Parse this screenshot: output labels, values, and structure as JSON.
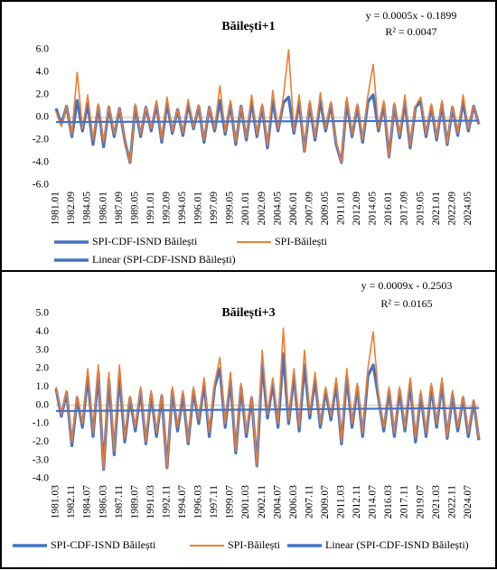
{
  "chart_data": [
    {
      "type": "line",
      "title": "Băilești+1",
      "equation": "y = 0.0005x - 0.1899",
      "r_squared": "R² = 0.0047",
      "categories": [
        "1981.01",
        null,
        null,
        "1982.09",
        null,
        null,
        "1984.05",
        null,
        null,
        "1986.01",
        null,
        null,
        "1987.09",
        null,
        null,
        "1989.05",
        null,
        null,
        "1991.01",
        null,
        null,
        "1992.09",
        null,
        null,
        "1994.05",
        null,
        null,
        "1996.01",
        null,
        null,
        "1997.09",
        null,
        null,
        "1999.05",
        null,
        null,
        "2001.01",
        null,
        null,
        "2002.09",
        null,
        null,
        "2004.05",
        null,
        null,
        "2006.01",
        null,
        null,
        "2007.09",
        null,
        null,
        "2009.05",
        null,
        null,
        "2011.01",
        null,
        null,
        "2012.09",
        null,
        null,
        "2014.05",
        null,
        null,
        "2016.01",
        null,
        null,
        "2017.09",
        null,
        null,
        "2019.05",
        null,
        null,
        "2021.01",
        null,
        null,
        "2022.09",
        null,
        null,
        "2024.05",
        null,
        null
      ],
      "series": [
        {
          "name": "SPI-CDF-ISND Băilești",
          "color": "#4472c4",
          "values": [
            0.8,
            -0.6,
            1.0,
            -1.7,
            1.5,
            -1.2,
            1.2,
            -2.4,
            1.0,
            -2.6,
            0.9,
            -1.7,
            0.8,
            -2.0,
            -4.0,
            1.0,
            -1.7,
            0.9,
            -1.2,
            1.2,
            -2.2,
            1.3,
            -1.4,
            0.7,
            -1.6,
            1.2,
            -1.0,
            1.0,
            -2.2,
            0.9,
            -1.2,
            1.5,
            -1.5,
            1.2,
            -2.4,
            1.0,
            -2.0,
            1.4,
            -1.7,
            1.0,
            -2.7,
            1.5,
            -1.2,
            1.3,
            1.8,
            -1.4,
            1.4,
            -3.0,
            1.2,
            -2.0,
            1.5,
            -1.2,
            1.2,
            -2.4,
            -4.0,
            1.4,
            -1.7,
            1.0,
            -2.2,
            1.4,
            2.0,
            -1.2,
            1.2,
            -3.5,
            1.1,
            -1.8,
            1.4,
            -2.7,
            0.9,
            1.4,
            -1.7,
            1.0,
            -2.0,
            1.2,
            -2.4,
            0.9,
            -1.6,
            1.4,
            -1.2,
            1.0,
            -0.6
          ]
        },
        {
          "name": "SPI-Băilești",
          "color": "#ed7d31",
          "values": [
            0.5,
            -0.8,
            1.0,
            -1.5,
            4.0,
            -1.0,
            2.0,
            -2.0,
            1.2,
            -2.2,
            1.0,
            -1.5,
            0.8,
            -1.8,
            -4.0,
            1.2,
            -1.5,
            0.9,
            -1.0,
            1.5,
            -2.0,
            1.8,
            -1.2,
            0.7,
            -1.4,
            1.6,
            -0.9,
            1.1,
            -2.0,
            0.9,
            -1.0,
            2.8,
            -1.3,
            1.5,
            -2.2,
            1.0,
            -1.8,
            2.0,
            -1.5,
            1.2,
            -2.5,
            2.4,
            -1.0,
            1.8,
            6.0,
            -1.2,
            2.0,
            -3.0,
            1.5,
            -1.8,
            2.2,
            -1.0,
            1.4,
            -2.2,
            -4.0,
            1.8,
            -1.5,
            1.2,
            -2.0,
            2.0,
            4.7,
            -1.0,
            1.5,
            -3.5,
            1.3,
            -1.6,
            2.0,
            -2.5,
            1.0,
            1.8,
            -1.5,
            1.2,
            -1.8,
            1.5,
            -2.3,
            1.0,
            -1.4,
            2.0,
            -1.0,
            1.0,
            -0.5
          ]
        }
      ],
      "trendline": {
        "name": "Linear (SPI-CDF-ISND Băilești)",
        "color": "#4472c4"
      },
      "ylim": [
        -6,
        6
      ],
      "yticks": [
        {
          "value": -6,
          "label": "-6.0"
        },
        {
          "value": -4,
          "label": "-4.0"
        },
        {
          "value": -2,
          "label": "-2.0"
        },
        {
          "value": 0,
          "label": "0.0"
        },
        {
          "value": 2,
          "label": "2.0"
        },
        {
          "value": 4,
          "label": "4.0"
        },
        {
          "value": 6,
          "label": "6.0"
        }
      ],
      "grid": false
    },
    {
      "type": "line",
      "title": "Băilești+3",
      "equation": "y = 0.0009x - 0.2503",
      "r_squared": "R² = 0.0165",
      "categories": [
        "1981.03",
        null,
        null,
        "1982.11",
        null,
        null,
        "1984.07",
        null,
        null,
        "1986.03",
        null,
        null,
        "1987.11",
        null,
        null,
        "1989.07",
        null,
        null,
        "1991.03",
        null,
        null,
        "1992.11",
        null,
        null,
        "1994.07",
        null,
        null,
        "1996.03",
        null,
        null,
        "1997.11",
        null,
        null,
        "1999.07",
        null,
        null,
        "2001.03",
        null,
        null,
        "2002.11",
        null,
        null,
        "2004.07",
        null,
        null,
        "2006.03",
        null,
        null,
        "2007.11",
        null,
        null,
        "2009.07",
        null,
        null,
        "2011.03",
        null,
        null,
        "2012.11",
        null,
        null,
        "2014.07",
        null,
        null,
        "2016.03",
        null,
        null,
        "2017.11",
        null,
        null,
        "2019.07",
        null,
        null,
        "2021.03",
        null,
        null,
        "2022.11",
        null,
        null,
        "2024.07",
        null,
        null
      ],
      "series": [
        {
          "name": "SPI-CDF-ISND Băilești",
          "color": "#4472c4",
          "values": [
            0.9,
            -0.6,
            0.7,
            -2.2,
            0.4,
            -1.2,
            1.6,
            -1.7,
            1.8,
            -3.5,
            1.4,
            -2.7,
            1.7,
            -2.0,
            0.4,
            -1.4,
            0.8,
            -2.1,
            0.6,
            -1.7,
            0.5,
            -3.4,
            0.8,
            -1.4,
            0.6,
            -2.1,
            0.8,
            -1.0,
            1.2,
            -1.7,
            1.0,
            2.0,
            -1.2,
            1.4,
            -2.6,
            1.0,
            -1.7,
            0.4,
            -3.3,
            2.3,
            -0.7,
            1.2,
            -1.2,
            2.8,
            -1.0,
            1.6,
            -1.4,
            2.2,
            -0.7,
            1.4,
            -1.2,
            0.8,
            -0.8,
            1.2,
            -2.1,
            1.6,
            -1.2,
            1.0,
            -1.7,
            1.6,
            2.2,
            0.4,
            -1.4,
            0.8,
            -1.7,
            0.8,
            -1.4,
            1.2,
            -2.0,
            0.6,
            -1.7,
            1.0,
            -1.2,
            1.2,
            -1.8,
            0.6,
            -1.4,
            0.4,
            -1.7,
            0.2,
            -1.9
          ]
        },
        {
          "name": "SPI-Băilești",
          "color": "#ed7d31",
          "values": [
            1.0,
            -0.5,
            0.8,
            -2.0,
            0.5,
            -1.0,
            2.0,
            -1.5,
            2.2,
            -3.5,
            1.8,
            -2.5,
            2.2,
            -1.8,
            0.5,
            -1.2,
            1.0,
            -2.0,
            0.8,
            -1.5,
            0.6,
            -3.4,
            1.0,
            -1.2,
            0.8,
            -2.0,
            1.0,
            -0.8,
            1.5,
            -1.5,
            1.2,
            2.6,
            -1.0,
            1.8,
            -2.5,
            1.2,
            -1.5,
            0.5,
            -3.3,
            3.0,
            -0.5,
            1.5,
            -1.0,
            4.2,
            -0.8,
            2.0,
            -1.2,
            3.0,
            -0.5,
            1.8,
            -1.0,
            1.0,
            -0.6,
            1.5,
            -2.0,
            2.0,
            -1.0,
            1.2,
            -1.5,
            2.0,
            4.0,
            0.5,
            -1.2,
            1.0,
            -1.5,
            1.0,
            -1.2,
            1.5,
            -1.8,
            0.8,
            -1.5,
            1.2,
            -1.0,
            1.5,
            -1.7,
            0.8,
            -1.2,
            0.5,
            -1.5,
            0.3,
            -1.8
          ]
        }
      ],
      "trendline": {
        "name": "Linear (SPI-CDF-ISND Băilești)",
        "color": "#4472c4"
      },
      "ylim": [
        -4,
        5
      ],
      "yticks": [
        {
          "value": -4,
          "label": "-4.0"
        },
        {
          "value": -3,
          "label": "-3.0"
        },
        {
          "value": -2,
          "label": "-2.0"
        },
        {
          "value": -1,
          "label": "-1.0"
        },
        {
          "value": 0,
          "label": "0.0"
        },
        {
          "value": 1,
          "label": "1.0"
        },
        {
          "value": 2,
          "label": "2.0"
        },
        {
          "value": 3,
          "label": "3.0"
        },
        {
          "value": 4,
          "label": "4.0"
        },
        {
          "value": 5,
          "label": "5.0"
        }
      ],
      "grid": false
    }
  ]
}
